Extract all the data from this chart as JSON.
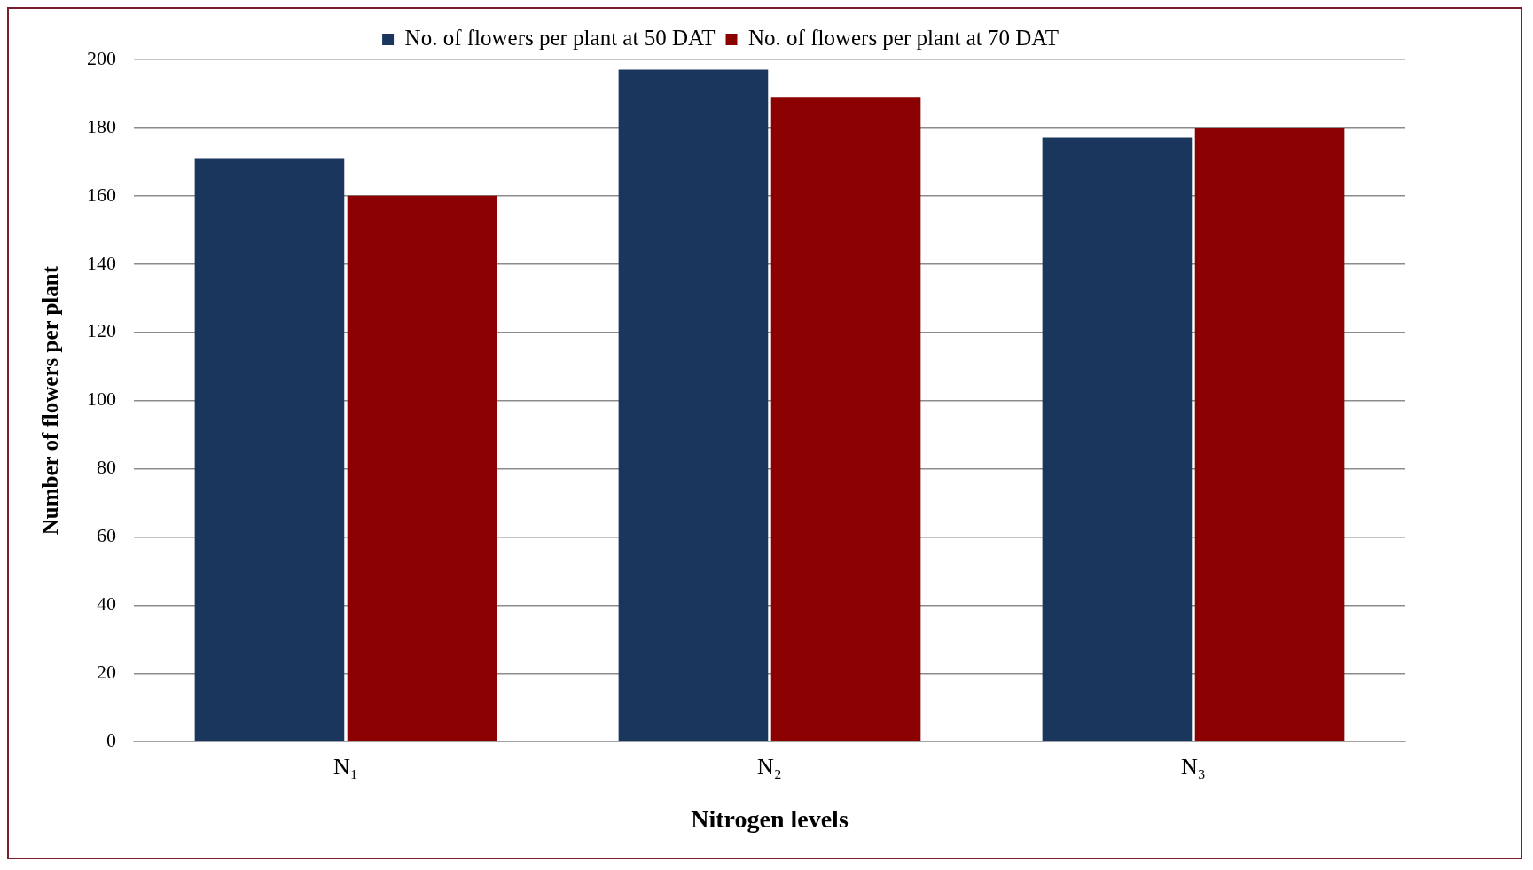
{
  "chart_data": {
    "type": "bar",
    "xlabel": "Nitrogen levels",
    "ylabel": "Number of flowers per plant",
    "categories": [
      "N₁",
      "N₂",
      "N₃"
    ],
    "series": [
      {
        "name": "No. of flowers per plant at 50 DAT",
        "color": "#1a365d",
        "values": [
          171,
          197,
          177
        ]
      },
      {
        "name": "No. of flowers per plant at 70 DAT",
        "color": "#8b0000",
        "values": [
          160,
          189,
          180
        ]
      }
    ],
    "ylim": [
      0,
      200
    ],
    "yticks": [
      0,
      20,
      40,
      60,
      80,
      100,
      120,
      140,
      160,
      180,
      200
    ],
    "grid": "y",
    "legend": "top"
  }
}
